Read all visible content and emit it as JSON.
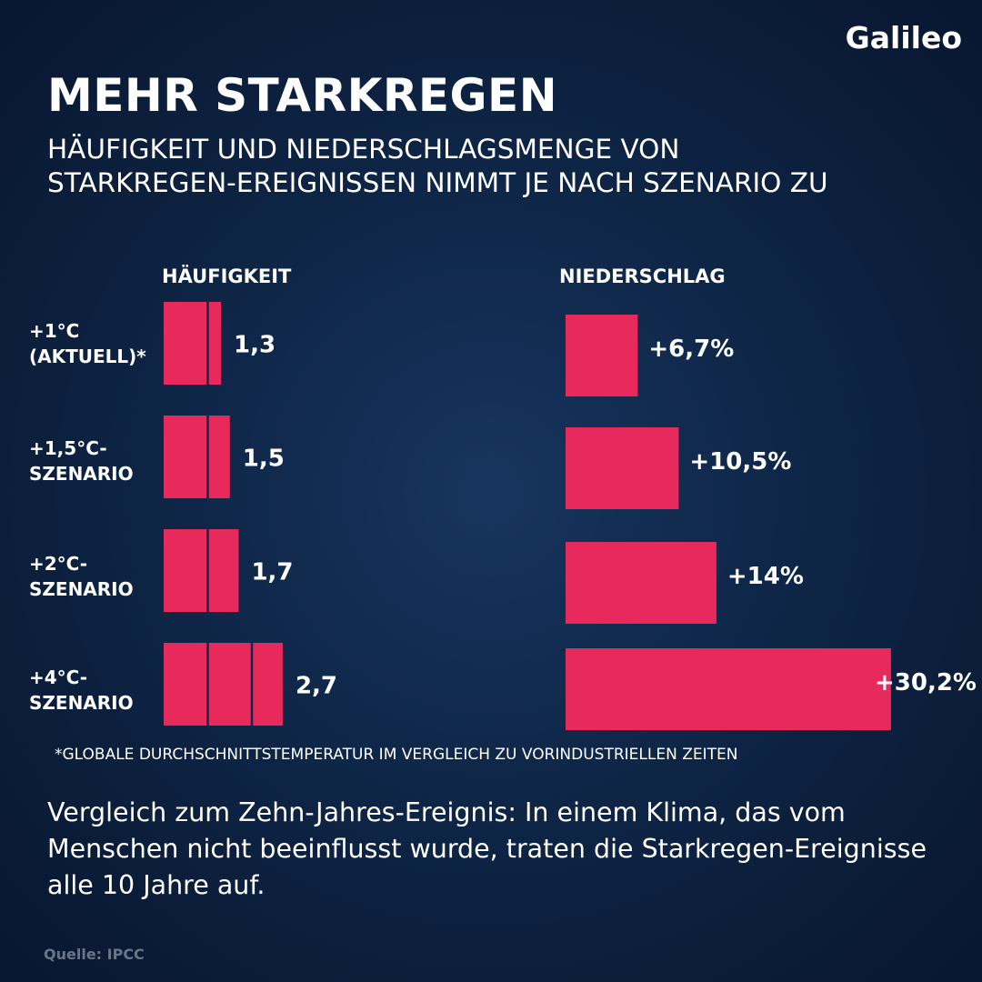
{
  "brand": {
    "logo_text": "Galileo"
  },
  "title": "MEHR STARKREGEN",
  "subtitle": "HÄUFIGKEIT UND NIEDERSCHLAGSMENGE VON\nSTARKREGEN-EREIGNISSEN NIMMT JE NACH SZENARIO ZU",
  "colors": {
    "bar": "#e8295c",
    "text": "#ffffff",
    "background": "#0f2749",
    "source": "#6b7587"
  },
  "chart_data": [
    {
      "type": "bar",
      "title": "HÄUFIGKEIT",
      "orientation": "horizontal",
      "categories": [
        "+1°C\n(AKTUELL)*",
        "+1,5°C-\nSZENARIO",
        "+2°C-\nSZENARIO",
        "+4°C-\nSZENARIO"
      ],
      "values": [
        1.3,
        1.5,
        1.7,
        2.7
      ],
      "value_labels": [
        "1,3",
        "1,5",
        "1,7",
        "2,7"
      ]
    },
    {
      "type": "bar",
      "title": "NIEDERSCHLAG",
      "orientation": "horizontal",
      "categories": [
        "+1°C\n(AKTUELL)*",
        "+1,5°C-\nSZENARIO",
        "+2°C-\nSZENARIO",
        "+4°C-\nSZENARIO"
      ],
      "values": [
        6.7,
        10.5,
        14,
        30.2
      ],
      "unit": "%",
      "value_labels": [
        "+6,7%",
        "+10,5%",
        "+14%",
        "+30,2%"
      ]
    }
  ],
  "footnote": "*GLOBALE DURCHSCHNITTSTEMPERATUR IM VERGLEICH ZU VORINDUSTRIELLEN ZEITEN",
  "note": "Vergleich zum Zehn-Jahres-Ereignis: In einem Klima, das vom Menschen nicht beeinflusst wurde, traten die Starkregen-Ereignisse alle 10 Jahre auf.",
  "source": "Quelle: IPCC"
}
